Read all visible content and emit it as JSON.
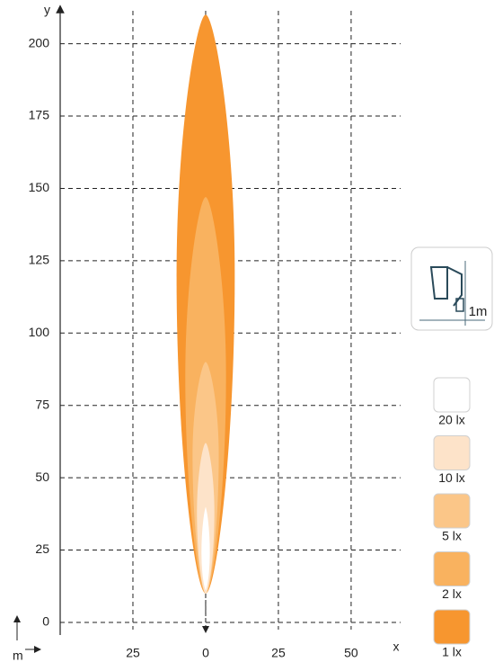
{
  "chart_data": {
    "type": "isolux",
    "x_label": "x",
    "y_label": "y",
    "unit_label": "m",
    "icon_label": "1m",
    "xlim": [
      -50,
      67
    ],
    "ylim": [
      -2.5,
      212
    ],
    "xticks": [
      {
        "value": -25,
        "label": "25"
      },
      0,
      25,
      50
    ],
    "yticks": [
      0,
      25,
      50,
      75,
      100,
      125,
      150,
      175,
      200
    ],
    "grid": true,
    "series": [
      {
        "name": "1 lx",
        "color": "#f7962f",
        "y_start": 10,
        "y_widest": 120,
        "y_end": 210,
        "half_width": 10
      },
      {
        "name": "2 lx",
        "color": "#f9b25f",
        "y_start": 10,
        "y_widest": 85,
        "y_end": 147,
        "half_width": 7
      },
      {
        "name": "5 lx",
        "color": "#fbc688",
        "y_start": 10,
        "y_widest": 58,
        "y_end": 90,
        "half_width": 4.5
      },
      {
        "name": "10 lx",
        "color": "#fde3c9",
        "y_start": 10,
        "y_widest": 38,
        "y_end": 62,
        "half_width": 3
      },
      {
        "name": "20 lx",
        "color": "#ffffff",
        "y_start": 11,
        "y_widest": 24,
        "y_end": 40,
        "half_width": 1.6
      }
    ]
  }
}
